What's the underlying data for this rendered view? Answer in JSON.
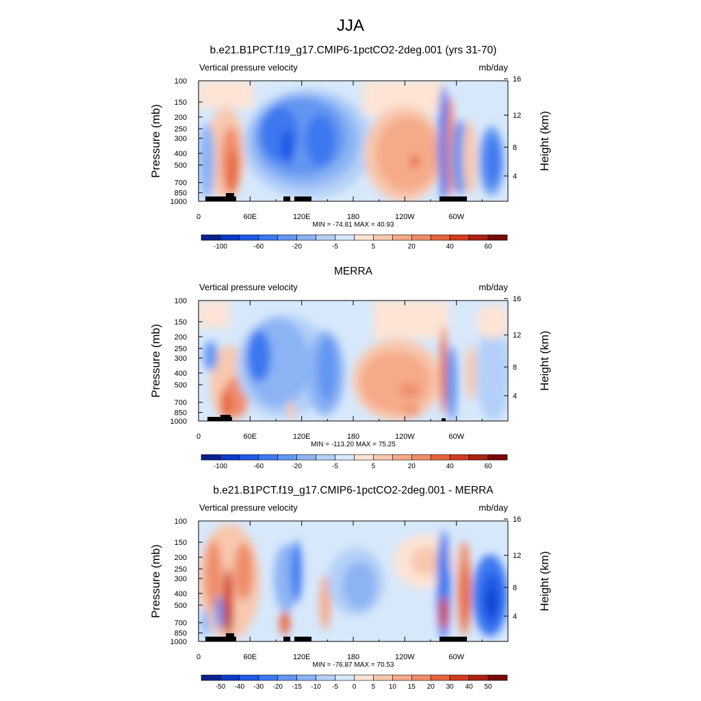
{
  "figure": {
    "title": "JJA"
  },
  "colors": {
    "nine_step": [
      "#08228c",
      "#0a3bc8",
      "#1e5ae6",
      "#3c78f0",
      "#6496f2",
      "#8cb4f4",
      "#b4d0f8",
      "#d7e8fb",
      "#fde4d5",
      "#f8c8ae",
      "#f5aa8a",
      "#f08c6a",
      "#e6643c",
      "#d23c1e",
      "#aa2212",
      "#780a08"
    ]
  },
  "chart_data": [
    {
      "type": "heatmap",
      "title": "b.e21.B1PCT.f19_g17.CMIP6-1pctCO2-2deg.001 (yrs 31-70)",
      "left_label": "Vertical pressure velocity",
      "right_label": "mb/day",
      "ylabel": "Pressure (mb)",
      "y2label": "Height (km)",
      "x_ticks": [
        "0",
        "60E",
        "120E",
        "180",
        "120W",
        "60W"
      ],
      "y_ticks": [
        "100",
        "150",
        "200",
        "250",
        "300",
        "400",
        "500",
        "700",
        "850",
        "1000"
      ],
      "y2_ticks": [
        "16",
        "12",
        "8",
        "4"
      ],
      "stats": "MIN = -74.81  MAX =  40.93",
      "colorbar_labels": [
        "-100",
        "-60",
        "-20",
        "-5",
        "5",
        "20",
        "40",
        "60"
      ],
      "colorbar_palette": "nine_step"
    },
    {
      "type": "heatmap",
      "title": "MERRA",
      "left_label": "Vertical pressure velocity",
      "right_label": "mb/day",
      "ylabel": "Pressure (mb)",
      "y2label": "Height (km)",
      "x_ticks": [
        "0",
        "60E",
        "120E",
        "180",
        "120W",
        "60W"
      ],
      "y_ticks": [
        "100",
        "150",
        "200",
        "250",
        "300",
        "400",
        "500",
        "700",
        "850",
        "1000"
      ],
      "y2_ticks": [
        "16",
        "12",
        "8",
        "4"
      ],
      "stats": "MIN = -113.20  MAX =  75.25",
      "colorbar_labels": [
        "-100",
        "-60",
        "-20",
        "-5",
        "5",
        "20",
        "40",
        "60"
      ],
      "colorbar_palette": "nine_step"
    },
    {
      "type": "heatmap",
      "title": "b.e21.B1PCT.f19_g17.CMIP6-1pctCO2-2deg.001 - MERRA",
      "left_label": "Vertical pressure velocity",
      "right_label": "mb/day",
      "ylabel": "Pressure (mb)",
      "y2label": "Height (km)",
      "x_ticks": [
        "0",
        "60E",
        "120E",
        "180",
        "120W",
        "60W"
      ],
      "y_ticks": [
        "100",
        "150",
        "200",
        "250",
        "300",
        "400",
        "500",
        "700",
        "850",
        "1000"
      ],
      "y2_ticks": [
        "16",
        "12",
        "8",
        "4"
      ],
      "stats": "MIN = -76.87  MAX =  70.53",
      "colorbar_labels": [
        "-50",
        "-40",
        "-30",
        "-20",
        "-15",
        "-10",
        "-5",
        "0",
        "5",
        "10",
        "15",
        "20",
        "30",
        "40",
        "50"
      ],
      "colorbar_palette": "nine_step"
    }
  ]
}
